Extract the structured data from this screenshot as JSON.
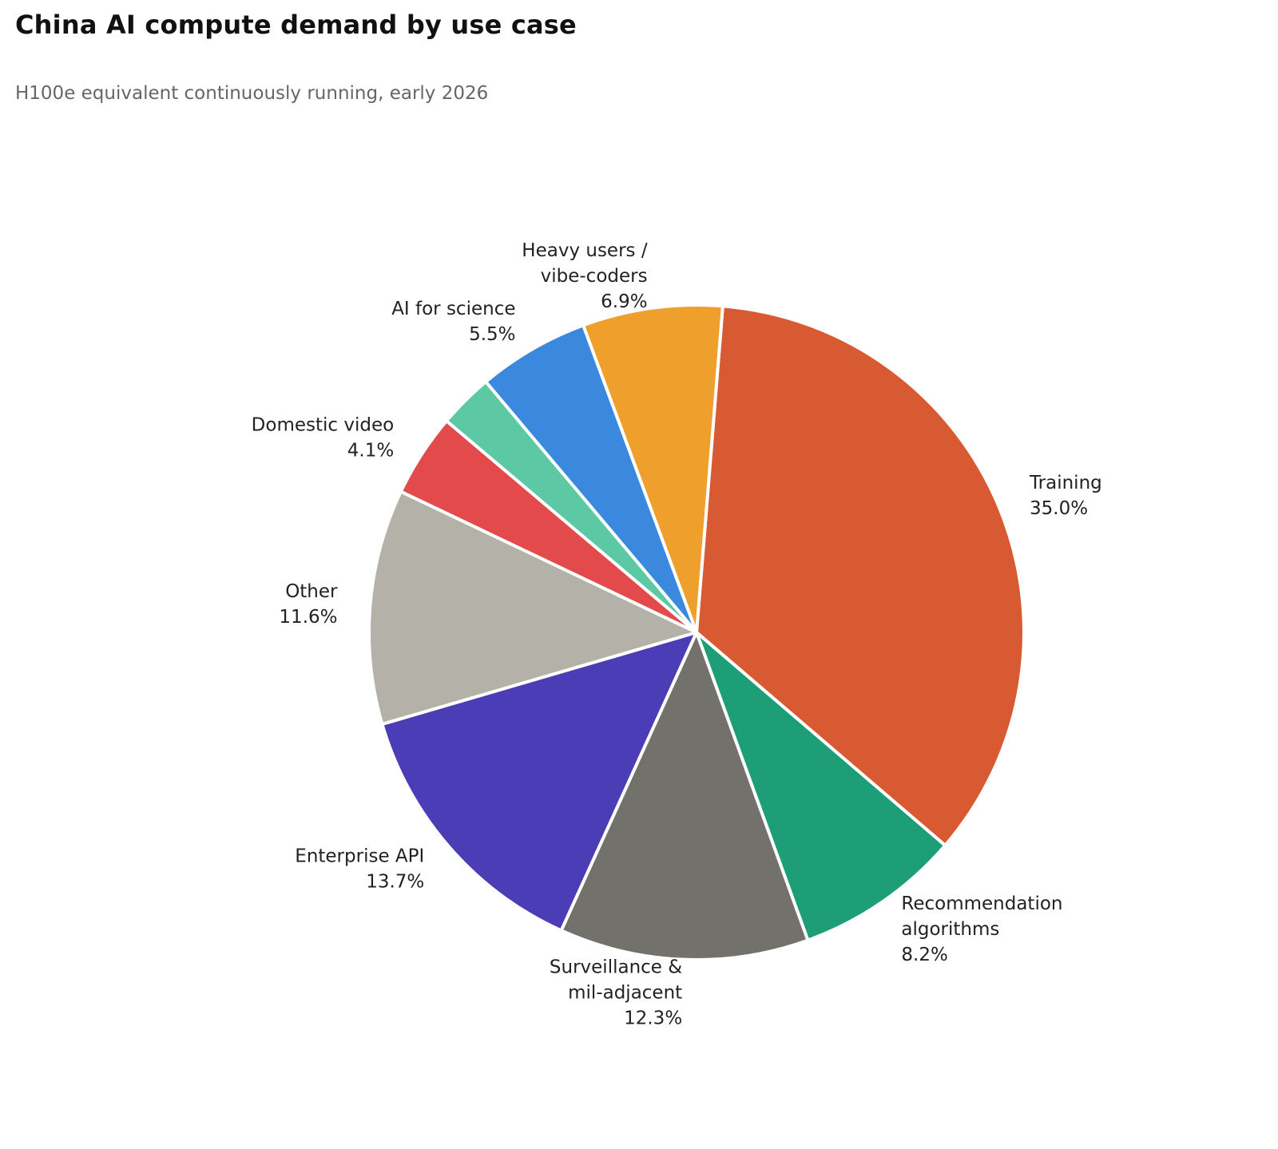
{
  "chart_data": {
    "type": "pie",
    "title": "China AI compute demand by use case",
    "subtitle": "H100e equivalent continuously running, early 2026",
    "slices": [
      {
        "key": "training",
        "label_lines": [
          "Training"
        ],
        "value": 35.0,
        "display": "35.0%",
        "color": "#D85A32"
      },
      {
        "key": "recommendation",
        "label_lines": [
          "Recommendation",
          "algorithms"
        ],
        "value": 8.2,
        "display": "8.2%",
        "color": "#1E9E77"
      },
      {
        "key": "surveillance",
        "label_lines": [
          "Surveillance &",
          "mil-adjacent"
        ],
        "value": 12.3,
        "display": "12.3%",
        "color": "#73716C"
      },
      {
        "key": "enterprise-api",
        "label_lines": [
          "Enterprise API"
        ],
        "value": 13.7,
        "display": "13.7%",
        "color": "#4B3DB6"
      },
      {
        "key": "other",
        "label_lines": [
          "Other"
        ],
        "value": 11.6,
        "display": "11.6%",
        "color": "#B4B1A9"
      },
      {
        "key": "domestic-video",
        "label_lines": [
          "Domestic video"
        ],
        "value": 4.1,
        "display": "4.1%",
        "color": "#E24A4B"
      },
      {
        "key": "unlabeled-small",
        "label_lines": [],
        "value": 2.7,
        "display": "",
        "color": "#5DC8A4"
      },
      {
        "key": "ai-for-science",
        "label_lines": [
          "AI for science"
        ],
        "value": 5.5,
        "display": "5.5%",
        "color": "#3A89DE"
      },
      {
        "key": "heavy-users",
        "label_lines": [
          "Heavy users /",
          "vibe-coders"
        ],
        "value": 6.9,
        "display": "6.9%",
        "color": "#EF9F2B"
      }
    ]
  }
}
